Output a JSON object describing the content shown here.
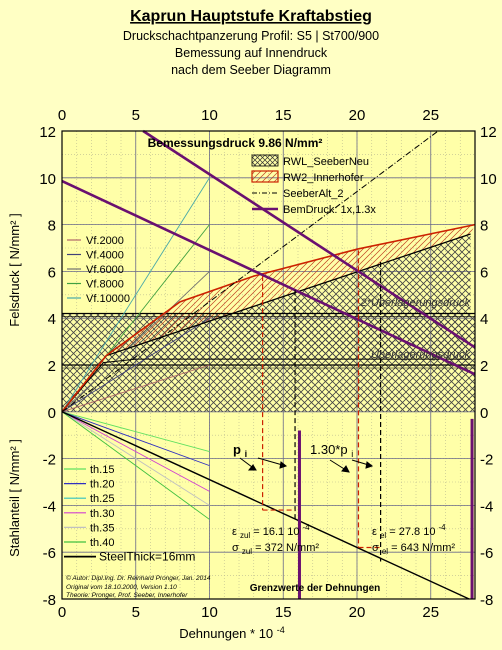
{
  "title": "Kaprun Hauptstufe Kraftabstieg",
  "subtitle_lines": [
    "Druckschachtpanzerung Profil: S5 | St700/900",
    "Bemessung auf Innendruck",
    "nach dem Seeber Diagramm"
  ],
  "chart_data": {
    "type": "line",
    "xlabel": "Dehnungen * 10",
    "xlabel_exp": "-4",
    "ylabel_top": "Felsdruck [ N/mm² ]",
    "ylabel_bottom": "Stahlanteil [ N/mm² ]",
    "xlim": [
      0,
      28
    ],
    "ylim": [
      -8,
      12
    ],
    "x_ticks": [
      0,
      5,
      10,
      15,
      20,
      25
    ],
    "y_ticks": [
      -8,
      -6,
      -4,
      -2,
      0,
      2,
      4,
      6,
      8,
      10,
      12
    ],
    "design_pressure_label": "Bemessungsdruck 9.86 N/mm²",
    "legend_main": [
      {
        "label": "RWL_SeeberNeu",
        "color": "#000000",
        "style": "hatch"
      },
      {
        "label": "RW2_Innerhofer",
        "color": "#cc2200",
        "style": "hatch"
      },
      {
        "label": "SeeberAlt_2",
        "color": "#000000",
        "style": "dashdot"
      },
      {
        "label": "BemDruck: 1x,1.3x",
        "color": "#6a1070",
        "style": "solid"
      }
    ],
    "legend_vf": [
      {
        "label": "Vf.2000",
        "color": "#b06868"
      },
      {
        "label": "Vf.4000",
        "color": "#404078"
      },
      {
        "label": "Vf.6000",
        "color": "#707070"
      },
      {
        "label": "Vf.8000",
        "color": "#40a040"
      },
      {
        "label": "Vf.10000",
        "color": "#48a8a8"
      }
    ],
    "legend_th": [
      {
        "label": "th.15",
        "color": "#60e060"
      },
      {
        "label": "th.20",
        "color": "#3030c0"
      },
      {
        "label": "th.25",
        "color": "#30c0c0"
      },
      {
        "label": "th.30",
        "color": "#d040d0"
      },
      {
        "label": "th.35",
        "color": "#c0c0c0"
      },
      {
        "label": "th.40",
        "color": "#40c040"
      },
      {
        "label": "SteelThick=16mm",
        "color": "#000000"
      }
    ],
    "vf_lines": [
      {
        "name": "Vf.2000",
        "x": [
          0,
          10
        ],
        "y": [
          0,
          2.0
        ]
      },
      {
        "name": "Vf.4000",
        "x": [
          0,
          10
        ],
        "y": [
          0,
          4.0
        ]
      },
      {
        "name": "Vf.6000",
        "x": [
          0,
          10
        ],
        "y": [
          0,
          6.0
        ]
      },
      {
        "name": "Vf.8000",
        "x": [
          0,
          10
        ],
        "y": [
          0,
          8.0
        ]
      },
      {
        "name": "Vf.10000",
        "x": [
          0,
          10
        ],
        "y": [
          0,
          10.0
        ]
      }
    ],
    "th_lines": [
      {
        "name": "th.15",
        "x": [
          0,
          10
        ],
        "y": [
          0,
          -1.7
        ]
      },
      {
        "name": "th.20",
        "x": [
          0,
          10
        ],
        "y": [
          0,
          -2.3
        ]
      },
      {
        "name": "th.25",
        "x": [
          0,
          10
        ],
        "y": [
          0,
          -2.9
        ]
      },
      {
        "name": "th.30",
        "x": [
          0,
          10
        ],
        "y": [
          0,
          -3.4
        ]
      },
      {
        "name": "th.35",
        "x": [
          0,
          10
        ],
        "y": [
          0,
          -4.0
        ]
      },
      {
        "name": "th.40",
        "x": [
          0,
          10
        ],
        "y": [
          0,
          -4.6
        ]
      }
    ],
    "steel_line": {
      "x": [
        0,
        27.6
      ],
      "y": [
        0,
        -8.0
      ]
    },
    "rwl_upper": {
      "x": [
        0,
        3,
        27.7
      ],
      "y": [
        0,
        2.4,
        7.6
      ]
    },
    "rwl_lower": {
      "x": [
        0,
        2.8,
        5,
        27.7
      ],
      "y": [
        0,
        2.1,
        2.25,
        2.25
      ]
    },
    "rw2_upper": {
      "x": [
        0,
        3,
        8,
        13,
        20,
        28
      ],
      "y": [
        0,
        2.4,
        4.7,
        5.8,
        6.95,
        8.0
      ]
    },
    "seeber_alt": {
      "x": [
        0,
        25.5
      ],
      "y": [
        0,
        12
      ]
    },
    "bem_lines": [
      {
        "x": [
          0,
          28
        ],
        "y": [
          9.86,
          1.6
        ]
      },
      {
        "x": [
          5.5,
          28
        ],
        "y": [
          12,
          2.75
        ]
      }
    ],
    "reference_levels": [
      {
        "label": "Überlagerungsdruck",
        "y": 2.0
      },
      {
        "label": "2*Überlagerungsdruck",
        "y": 4.2
      }
    ],
    "hatch_band": {
      "x": [
        0,
        28
      ],
      "y": [
        0,
        4.2
      ]
    },
    "markers": [
      {
        "x": 13.6,
        "top": 5.8,
        "bottom": -4.2,
        "color": "#cc2200"
      },
      {
        "x": 15.8,
        "top": 5.2,
        "bottom": -4.6,
        "color": "#000000"
      },
      {
        "x": 20.1,
        "top": 6.9,
        "bottom": -5.8,
        "color": "#cc2200"
      },
      {
        "x": 21.6,
        "top": 6.4,
        "bottom": -6.4,
        "color": "#000000"
      }
    ],
    "pi_label": "p",
    "pi_sub": "i",
    "pi13_label": "1.30*p",
    "pi13_sub": "i",
    "eps_zul": "ε",
    "eps_zul_sub": "zul",
    "eps_zul_val": "= 16.1 10",
    "eps_zul_exp": "-4",
    "sigma_zul": "σ",
    "sigma_zul_sub": "zul",
    "sigma_zul_val": "= 372 N/mm²",
    "eps_el": "ε",
    "eps_el_sub": "el",
    "eps_el_val": "= 27.8 10",
    "eps_el_exp": "-4",
    "sigma_el": "σ",
    "sigma_el_sub": "el",
    "sigma_el_val": "= 643 N/mm²",
    "grenz_label": "Grenzwerte der Dehnungen",
    "credits": [
      "© Autor: Dipl.Ing. Dr. Reinhard Pronger, Jan. 2014",
      "Original vom 18.10.2000, Version 1.10",
      "Theorie: Pronger, Prof. Seeber, Innerhofer"
    ]
  }
}
